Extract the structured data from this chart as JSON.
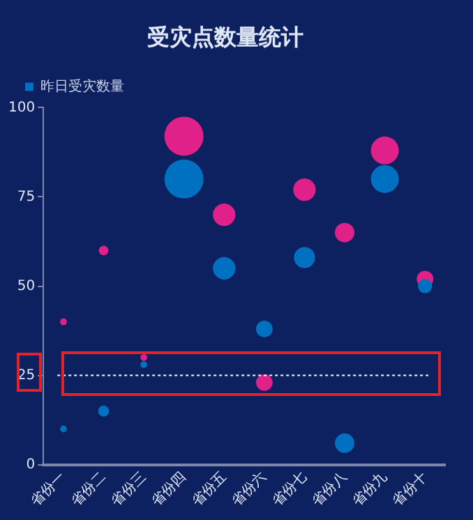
{
  "chart_data": {
    "type": "bubble",
    "title": "受灾点数量统计",
    "categories": [
      "省份一",
      "省份二",
      "省份三",
      "省份四",
      "省份五",
      "省份六",
      "省份七",
      "省份八",
      "省份九",
      "省份十"
    ],
    "series": [
      {
        "name": "昨日受灾数量",
        "color": "#0070c0",
        "values": [
          10,
          15,
          28,
          80,
          55,
          38,
          58,
          6,
          80,
          50
        ],
        "sizes": [
          0.03,
          0.08,
          0.03,
          1,
          0.33,
          0.18,
          0.29,
          0.25,
          0.51,
          0.13
        ]
      },
      {
        "color": "#e0218a",
        "values": [
          40,
          60,
          30,
          92,
          70,
          23,
          77,
          65,
          88,
          52
        ],
        "sizes": [
          0.03,
          0.06,
          0.03,
          1,
          0.33,
          0.18,
          0.33,
          0.25,
          0.51,
          0.18
        ]
      }
    ],
    "ylim": [
      0,
      100
    ],
    "yticks": [
      0,
      25,
      50,
      75,
      100
    ],
    "grid": false,
    "legend": "top left",
    "ref_lines": [
      {
        "axis": "y",
        "value": 25,
        "color": "#ffffff",
        "line_style": "dotted"
      }
    ]
  }
}
